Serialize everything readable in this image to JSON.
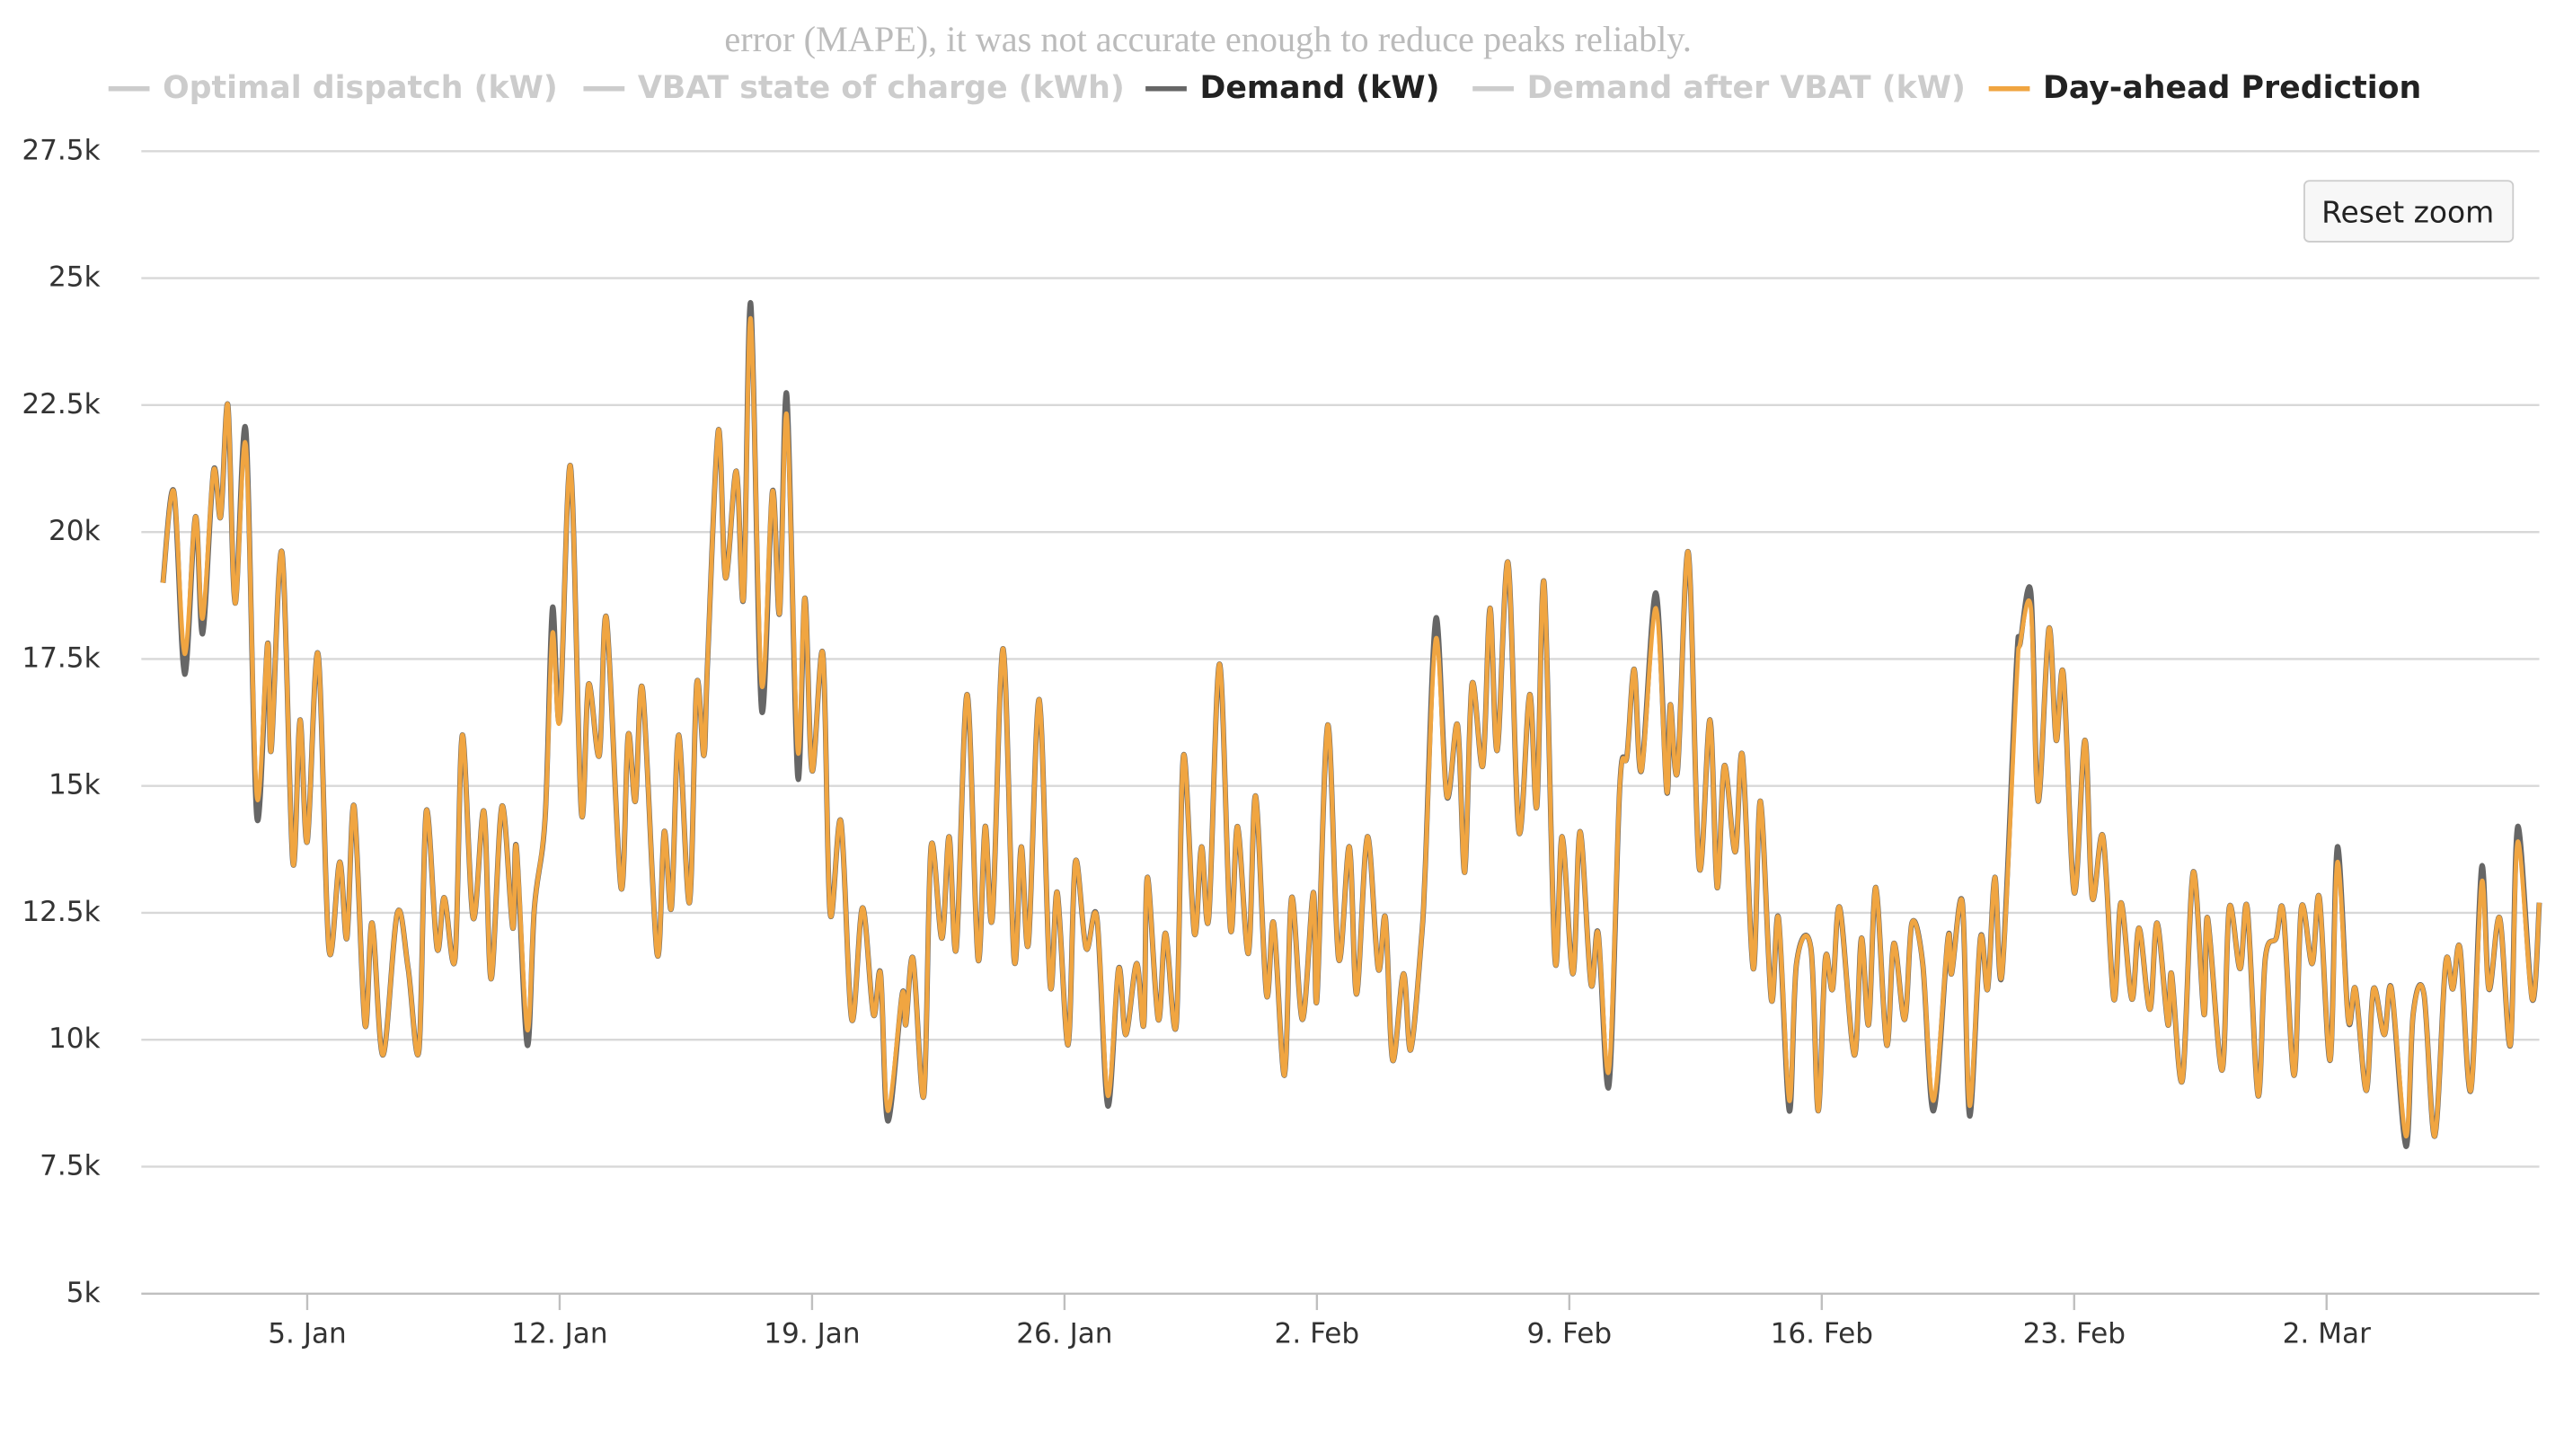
{
  "page_text": "error (MAPE), it was not accurate enough to reduce peaks reliably.",
  "chart_data": {
    "type": "line",
    "reset_zoom_button": "Reset zoom",
    "hidden_series": [
      {
        "name": "Optimal dispatch (kW)"
      },
      {
        "name": "VBAT state of charge (kWh)"
      },
      {
        "name": "Demand after VBAT (kW)"
      }
    ],
    "xlim": [
      0.4,
      66.9
    ],
    "xticks": [
      {
        "value": 5,
        "label": "5. Jan"
      },
      {
        "value": 12,
        "label": "12. Jan"
      },
      {
        "value": 19,
        "label": "19. Jan"
      },
      {
        "value": 26,
        "label": "26. Jan"
      },
      {
        "value": 33,
        "label": "2. Feb"
      },
      {
        "value": 40,
        "label": "9. Feb"
      },
      {
        "value": 47,
        "label": "16. Feb"
      },
      {
        "value": 54,
        "label": "23. Feb"
      },
      {
        "value": 61,
        "label": "2. Mar"
      }
    ],
    "ylim": [
      5000,
      27500
    ],
    "yticks": [
      {
        "value": 5000,
        "label": "5k"
      },
      {
        "value": 7500,
        "label": "7.5k"
      },
      {
        "value": 10000,
        "label": "10k"
      },
      {
        "value": 12500,
        "label": "12.5k"
      },
      {
        "value": 15000,
        "label": "15k"
      },
      {
        "value": 17500,
        "label": "17.5k"
      },
      {
        "value": 20000,
        "label": "20k"
      },
      {
        "value": 22500,
        "label": "22.5k"
      },
      {
        "value": 25000,
        "label": "25k"
      },
      {
        "value": 27500,
        "label": "27.5k"
      }
    ],
    "grid": true,
    "x": [
      1.0,
      1.3,
      1.6,
      1.9,
      2.1,
      2.4,
      2.6,
      2.8,
      3.0,
      3.3,
      3.6,
      3.9,
      4.0,
      4.3,
      4.6,
      4.8,
      5.0,
      5.3,
      5.6,
      5.9,
      6.1,
      6.3,
      6.6,
      6.8,
      7.1,
      7.5,
      7.8,
      8.1,
      8.3,
      8.6,
      8.8,
      9.1,
      9.3,
      9.6,
      9.9,
      10.1,
      10.4,
      10.7,
      10.8,
      11.1,
      11.3,
      11.6,
      11.8,
      12.0,
      12.3,
      12.6,
      12.8,
      13.1,
      13.3,
      13.7,
      13.9,
      14.1,
      14.3,
      14.7,
      14.9,
      15.1,
      15.3,
      15.6,
      15.8,
      16.0,
      16.1,
      16.4,
      16.6,
      16.9,
      17.1,
      17.3,
      17.6,
      17.9,
      18.1,
      18.3,
      18.6,
      18.8,
      19.0,
      19.3,
      19.5,
      19.8,
      20.1,
      20.4,
      20.7,
      20.9,
      21.1,
      21.5,
      21.6,
      21.8,
      22.1,
      22.3,
      22.6,
      22.8,
      23.0,
      23.3,
      23.6,
      23.8,
      24.0,
      24.3,
      24.6,
      24.8,
      25.0,
      25.3,
      25.6,
      25.8,
      26.1,
      26.3,
      26.6,
      26.9,
      27.2,
      27.5,
      27.7,
      28.0,
      28.2,
      28.3,
      28.6,
      28.8,
      29.1,
      29.3,
      29.6,
      29.8,
      30.0,
      30.3,
      30.6,
      30.8,
      31.1,
      31.3,
      31.6,
      31.8,
      32.1,
      32.3,
      32.6,
      32.9,
      33.0,
      33.3,
      33.6,
      33.9,
      34.1,
      34.4,
      34.7,
      34.9,
      35.1,
      35.4,
      35.6,
      35.9,
      36.0,
      36.3,
      36.6,
      36.9,
      37.1,
      37.3,
      37.6,
      37.8,
      38.0,
      38.3,
      38.6,
      38.9,
      39.1,
      39.3,
      39.6,
      39.8,
      40.1,
      40.3,
      40.6,
      40.8,
      41.1,
      41.4,
      41.6,
      41.8,
      42.0,
      42.4,
      42.7,
      42.8,
      43.0,
      43.3,
      43.6,
      43.9,
      44.1,
      44.3,
      44.6,
      44.8,
      45.1,
      45.3,
      45.6,
      45.8,
      46.1,
      46.3,
      46.7,
      46.9,
      47.1,
      47.3,
      47.5,
      47.9,
      48.1,
      48.3,
      48.5,
      48.8,
      49.0,
      49.3,
      49.5,
      49.8,
      50.1,
      50.5,
      50.6,
      50.9,
      51.1,
      51.4,
      51.6,
      51.8,
      52.0,
      52.4,
      52.5,
      52.8,
      53.0,
      53.3,
      53.5,
      53.7,
      54.0,
      54.3,
      54.5,
      54.8,
      55.1,
      55.3,
      55.6,
      55.8,
      56.1,
      56.3,
      56.6,
      56.7,
      57.0,
      57.3,
      57.6,
      57.7,
      58.1,
      58.3,
      58.6,
      58.8,
      59.1,
      59.3,
      59.6,
      59.8,
      60.1,
      60.3,
      60.6,
      60.8,
      61.1,
      61.3,
      61.6,
      61.8,
      62.1,
      62.3,
      62.6,
      62.8,
      63.2,
      63.4,
      63.7,
      64.0,
      64.3,
      64.5,
      64.7,
      65.0,
      65.3,
      65.5,
      65.8,
      66.1,
      66.3,
      66.7,
      66.9
    ],
    "series": [
      {
        "name": "Demand (kW)",
        "color": "#666666",
        "values": [
          19000,
          20800,
          17200,
          20300,
          18000,
          21200,
          20300,
          22500,
          18600,
          22000,
          14400,
          17800,
          15700,
          19600,
          13500,
          16300,
          13900,
          17600,
          11800,
          13500,
          12000,
          14600,
          10300,
          12300,
          9700,
          12500,
          11400,
          9800,
          14500,
          11800,
          12800,
          11600,
          16000,
          12400,
          14500,
          11200,
          14600,
          12200,
          13800,
          9900,
          12600,
          14400,
          18500,
          16300,
          21300,
          14500,
          17000,
          15600,
          18300,
          13000,
          16000,
          14700,
          16900,
          11700,
          14100,
          12600,
          16000,
          12700,
          17000,
          15600,
          17400,
          22000,
          19100,
          21200,
          18700,
          24500,
          16500,
          20800,
          18400,
          22700,
          15200,
          18700,
          15300,
          17600,
          12500,
          14300,
          10400,
          12600,
          10500,
          11300,
          8400,
          10900,
          10300,
          11600,
          8900,
          13800,
          12000,
          14000,
          11800,
          16800,
          11600,
          14200,
          12400,
          17700,
          11600,
          13800,
          11900,
          16700,
          11100,
          12900,
          9900,
          13500,
          11800,
          12400,
          8700,
          11400,
          10100,
          11500,
          10300,
          13200,
          10400,
          12100,
          10300,
          15600,
          12100,
          13800,
          12400,
          17400,
          12200,
          14200,
          11700,
          14800,
          10900,
          12300,
          9300,
          12800,
          10400,
          12900,
          10800,
          16200,
          11600,
          13800,
          10900,
          14000,
          11400,
          12400,
          9600,
          11300,
          9800,
          12000,
          13300,
          18300,
          14800,
          16200,
          13300,
          17000,
          15400,
          18500,
          15700,
          19400,
          14100,
          16800,
          14600,
          19000,
          11600,
          14000,
          11300,
          14100,
          11100,
          12100,
          9100,
          15000,
          15600,
          17300,
          15300,
          18800,
          14900,
          16600,
          15300,
          19600,
          13400,
          16300,
          13000,
          15400,
          13700,
          15600,
          11400,
          14700,
          10800,
          12400,
          8600,
          11500,
          11800,
          8600,
          11600,
          11000,
          12600,
          9700,
          12000,
          10300,
          13000,
          9900,
          11900,
          10400,
          12300,
          11500,
          8600,
          12000,
          11300,
          12700,
          8500,
          12000,
          11000,
          13200,
          11300,
          17400,
          17800,
          18800,
          14700,
          18100,
          15900,
          17200,
          12900,
          15900,
          12800,
          14000,
          10800,
          12700,
          10800,
          12200,
          10600,
          12300,
          10300,
          11300,
          9200,
          13300,
          10500,
          12400,
          9400,
          12600,
          11400,
          12600,
          8900,
          11600,
          12000,
          12500,
          9300,
          12600,
          11500,
          12800,
          9600,
          13800,
          10400,
          11000,
          9000,
          11000,
          10100,
          11000,
          7900,
          10500,
          10900,
          8100,
          11500,
          11000,
          11800,
          9000,
          13400,
          11000,
          12400,
          9900,
          14200,
          10800,
          12700
        ]
      },
      {
        "name": "Day-ahead Prediction",
        "color": "#f0a541",
        "values": [
          19000,
          20800,
          17600,
          20300,
          18300,
          21200,
          20300,
          22500,
          18600,
          21700,
          14800,
          17800,
          15700,
          19600,
          13500,
          16300,
          13900,
          17600,
          11800,
          13500,
          12000,
          14600,
          10300,
          12300,
          9700,
          12500,
          11400,
          9800,
          14500,
          11800,
          12800,
          11600,
          16000,
          12400,
          14500,
          11200,
          14600,
          12200,
          13800,
          10200,
          12600,
          14400,
          18000,
          16300,
          21300,
          14500,
          17000,
          15600,
          18300,
          13000,
          16000,
          14700,
          16900,
          11700,
          14100,
          12600,
          16000,
          12700,
          17000,
          15600,
          17400,
          22000,
          19100,
          21200,
          18700,
          24200,
          17000,
          20800,
          18400,
          22300,
          15700,
          18700,
          15300,
          17600,
          12500,
          14300,
          10400,
          12600,
          10500,
          11300,
          8600,
          10900,
          10300,
          11600,
          8900,
          13800,
          12000,
          14000,
          11800,
          16800,
          11600,
          14200,
          12400,
          17700,
          11600,
          13800,
          11900,
          16700,
          11100,
          12900,
          9900,
          13500,
          11800,
          12400,
          8900,
          11400,
          10100,
          11500,
          10300,
          13200,
          10400,
          12100,
          10300,
          15600,
          12100,
          13800,
          12400,
          17400,
          12200,
          14200,
          11700,
          14800,
          10900,
          12300,
          9300,
          12800,
          10400,
          12900,
          10800,
          16200,
          11600,
          13800,
          10900,
          14000,
          11400,
          12400,
          9600,
          11300,
          9800,
          12000,
          13300,
          17900,
          14800,
          16200,
          13300,
          17000,
          15400,
          18500,
          15700,
          19400,
          14100,
          16800,
          14600,
          19000,
          11600,
          14000,
          11300,
          14100,
          11100,
          12100,
          9400,
          15000,
          15600,
          17300,
          15300,
          18500,
          14900,
          16600,
          15300,
          19600,
          13400,
          16300,
          13000,
          15400,
          13700,
          15600,
          11400,
          14700,
          10800,
          12400,
          8800,
          11500,
          11800,
          8600,
          11600,
          11000,
          12600,
          9700,
          12000,
          10300,
          13000,
          9900,
          11900,
          10400,
          12300,
          11500,
          8800,
          12000,
          11300,
          12700,
          8700,
          12000,
          11000,
          13200,
          11300,
          17000,
          17800,
          18500,
          14700,
          18100,
          15900,
          17200,
          12900,
          15900,
          12800,
          14000,
          10800,
          12700,
          10800,
          12200,
          10600,
          12300,
          10300,
          11300,
          9200,
          13300,
          10500,
          12400,
          9400,
          12600,
          11400,
          12600,
          8900,
          11600,
          12000,
          12500,
          9300,
          12600,
          11500,
          12800,
          9600,
          13500,
          10400,
          11000,
          9000,
          11000,
          10100,
          11000,
          8100,
          10500,
          10900,
          8100,
          11500,
          11000,
          11800,
          9000,
          13100,
          11000,
          12400,
          9900,
          13900,
          10800,
          12700
        ]
      }
    ]
  }
}
